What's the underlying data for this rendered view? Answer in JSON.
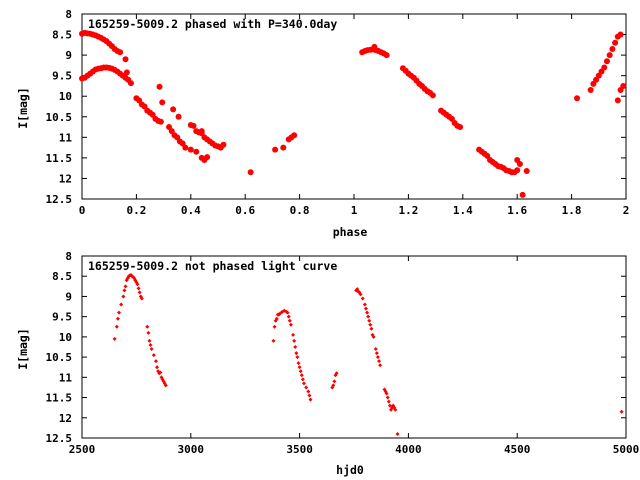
{
  "chart_data": [
    {
      "type": "scatter",
      "title": "165259-5009.2 phased with P=340.0day",
      "xlabel": "phase",
      "ylabel": "I[mag]",
      "xlim": [
        0,
        2
      ],
      "ylim": [
        12.5,
        8
      ],
      "y_inverted": true,
      "grid": false,
      "marker_color": "#ff0000",
      "marker": "filled-circle",
      "xticks": [
        0,
        0.2,
        0.4,
        0.6,
        0.8,
        1,
        1.2,
        1.4,
        1.6,
        1.8,
        2
      ],
      "xtick_labels": [
        "0",
        "0.2",
        "0.4",
        "0.6",
        "0.8",
        "1",
        "1.2",
        "1.4",
        "1.6",
        "1.8",
        "2"
      ],
      "yticks": [
        8,
        8.5,
        9,
        9.5,
        10,
        10.5,
        11,
        11.5,
        12,
        12.5
      ],
      "ytick_labels": [
        "8",
        "8.5",
        "9",
        "9.5",
        "10",
        "10.5",
        "11",
        "11.5",
        "12",
        "12.5"
      ],
      "points": [
        [
          0.0,
          8.48
        ],
        [
          0.01,
          8.46
        ],
        [
          0.02,
          8.47
        ],
        [
          0.03,
          8.48
        ],
        [
          0.04,
          8.5
        ],
        [
          0.05,
          8.52
        ],
        [
          0.06,
          8.55
        ],
        [
          0.07,
          8.58
        ],
        [
          0.08,
          8.62
        ],
        [
          0.09,
          8.66
        ],
        [
          0.1,
          8.72
        ],
        [
          0.11,
          8.78
        ],
        [
          0.12,
          8.85
        ],
        [
          0.13,
          8.9
        ],
        [
          0.14,
          8.93
        ],
        [
          0.0,
          9.57
        ],
        [
          0.01,
          9.55
        ],
        [
          0.02,
          9.5
        ],
        [
          0.03,
          9.45
        ],
        [
          0.04,
          9.4
        ],
        [
          0.05,
          9.35
        ],
        [
          0.06,
          9.33
        ],
        [
          0.07,
          9.32
        ],
        [
          0.08,
          9.3
        ],
        [
          0.09,
          9.3
        ],
        [
          0.1,
          9.31
        ],
        [
          0.11,
          9.33
        ],
        [
          0.12,
          9.36
        ],
        [
          0.13,
          9.4
        ],
        [
          0.14,
          9.45
        ],
        [
          0.15,
          9.5
        ],
        [
          0.16,
          9.55
        ],
        [
          0.17,
          9.6
        ],
        [
          0.18,
          9.68
        ],
        [
          0.16,
          9.1
        ],
        [
          0.165,
          9.42
        ],
        [
          0.2,
          10.05
        ],
        [
          0.21,
          10.1
        ],
        [
          0.22,
          10.2
        ],
        [
          0.23,
          10.25
        ],
        [
          0.24,
          10.35
        ],
        [
          0.25,
          10.4
        ],
        [
          0.26,
          10.45
        ],
        [
          0.27,
          10.55
        ],
        [
          0.28,
          10.6
        ],
        [
          0.29,
          10.62
        ],
        [
          0.285,
          9.77
        ],
        [
          0.295,
          10.15
        ],
        [
          0.32,
          10.75
        ],
        [
          0.33,
          10.85
        ],
        [
          0.34,
          10.95
        ],
        [
          0.35,
          11.0
        ],
        [
          0.36,
          11.1
        ],
        [
          0.37,
          11.15
        ],
        [
          0.38,
          11.25
        ],
        [
          0.335,
          10.32
        ],
        [
          0.355,
          10.5
        ],
        [
          0.4,
          10.7
        ],
        [
          0.41,
          10.72
        ],
        [
          0.42,
          10.85
        ],
        [
          0.43,
          10.88
        ],
        [
          0.44,
          10.9
        ],
        [
          0.45,
          11.0
        ],
        [
          0.46,
          11.05
        ],
        [
          0.47,
          11.1
        ],
        [
          0.48,
          11.15
        ],
        [
          0.49,
          11.2
        ],
        [
          0.5,
          11.22
        ],
        [
          0.51,
          11.25
        ],
        [
          0.52,
          11.18
        ],
        [
          0.4,
          11.3
        ],
        [
          0.42,
          11.35
        ],
        [
          0.44,
          11.5
        ],
        [
          0.45,
          11.55
        ],
        [
          0.46,
          11.48
        ],
        [
          0.44,
          10.85
        ],
        [
          0.62,
          11.85
        ],
        [
          0.71,
          11.3
        ],
        [
          0.74,
          11.25
        ],
        [
          0.76,
          11.05
        ],
        [
          0.77,
          11.0
        ],
        [
          0.78,
          10.95
        ],
        [
          1.03,
          8.93
        ],
        [
          1.04,
          8.9
        ],
        [
          1.05,
          8.88
        ],
        [
          1.06,
          8.87
        ],
        [
          1.07,
          8.86
        ],
        [
          1.08,
          8.88
        ],
        [
          1.09,
          8.9
        ],
        [
          1.1,
          8.93
        ],
        [
          1.11,
          8.96
        ],
        [
          1.12,
          9.0
        ],
        [
          1.075,
          8.8
        ],
        [
          1.18,
          9.32
        ],
        [
          1.19,
          9.38
        ],
        [
          1.2,
          9.45
        ],
        [
          1.21,
          9.5
        ],
        [
          1.22,
          9.55
        ],
        [
          1.23,
          9.62
        ],
        [
          1.24,
          9.7
        ],
        [
          1.25,
          9.75
        ],
        [
          1.26,
          9.82
        ],
        [
          1.27,
          9.88
        ],
        [
          1.28,
          9.92
        ],
        [
          1.29,
          9.98
        ],
        [
          1.32,
          10.35
        ],
        [
          1.33,
          10.4
        ],
        [
          1.34,
          10.45
        ],
        [
          1.35,
          10.5
        ],
        [
          1.36,
          10.55
        ],
        [
          1.37,
          10.65
        ],
        [
          1.38,
          10.72
        ],
        [
          1.39,
          10.75
        ],
        [
          1.46,
          11.3
        ],
        [
          1.47,
          11.35
        ],
        [
          1.48,
          11.4
        ],
        [
          1.49,
          11.45
        ],
        [
          1.5,
          11.55
        ],
        [
          1.51,
          11.6
        ],
        [
          1.52,
          11.65
        ],
        [
          1.53,
          11.7
        ],
        [
          1.54,
          11.72
        ],
        [
          1.55,
          11.75
        ],
        [
          1.56,
          11.8
        ],
        [
          1.57,
          11.82
        ],
        [
          1.58,
          11.85
        ],
        [
          1.59,
          11.85
        ],
        [
          1.6,
          11.8
        ],
        [
          1.6,
          11.55
        ],
        [
          1.61,
          11.65
        ],
        [
          1.62,
          12.4
        ],
        [
          1.635,
          11.82
        ],
        [
          1.82,
          10.05
        ],
        [
          1.87,
          9.85
        ],
        [
          1.88,
          9.7
        ],
        [
          1.89,
          9.6
        ],
        [
          1.9,
          9.5
        ],
        [
          1.91,
          9.4
        ],
        [
          1.92,
          9.3
        ],
        [
          1.93,
          9.15
        ],
        [
          1.94,
          9.0
        ],
        [
          1.95,
          8.85
        ],
        [
          1.96,
          8.7
        ],
        [
          1.97,
          8.55
        ],
        [
          1.98,
          8.5
        ],
        [
          1.97,
          10.1
        ],
        [
          1.98,
          9.85
        ],
        [
          1.99,
          9.75
        ]
      ]
    },
    {
      "type": "scatter",
      "title": "165259-5009.2 not phased light curve",
      "xlabel": "hjd0",
      "ylabel": "I[mag]",
      "xlim": [
        2500,
        5000
      ],
      "ylim": [
        12.5,
        8
      ],
      "y_inverted": true,
      "grid": false,
      "marker_color": "#ff0000",
      "marker": "small-diamond",
      "xticks": [
        2500,
        3000,
        3500,
        4000,
        4500,
        5000
      ],
      "xtick_labels": [
        "2500",
        "3000",
        "3500",
        "4000",
        "4500",
        "5000"
      ],
      "yticks": [
        8,
        8.5,
        9,
        9.5,
        10,
        10.5,
        11,
        11.5,
        12,
        12.5
      ],
      "ytick_labels": [
        "8",
        "8.5",
        "9",
        "9.5",
        "10",
        "10.5",
        "11",
        "11.5",
        "12",
        "12.5"
      ],
      "points": [
        [
          2650,
          10.05
        ],
        [
          2660,
          9.75
        ],
        [
          2665,
          9.55
        ],
        [
          2670,
          9.4
        ],
        [
          2680,
          9.2
        ],
        [
          2690,
          9.0
        ],
        [
          2695,
          8.85
        ],
        [
          2700,
          8.75
        ],
        [
          2705,
          8.6
        ],
        [
          2710,
          8.55
        ],
        [
          2715,
          8.5
        ],
        [
          2720,
          8.48
        ],
        [
          2725,
          8.47
        ],
        [
          2730,
          8.5
        ],
        [
          2735,
          8.52
        ],
        [
          2740,
          8.55
        ],
        [
          2745,
          8.6
        ],
        [
          2750,
          8.65
        ],
        [
          2755,
          8.7
        ],
        [
          2760,
          8.8
        ],
        [
          2765,
          8.9
        ],
        [
          2770,
          9.0
        ],
        [
          2775,
          9.05
        ],
        [
          2800,
          9.75
        ],
        [
          2805,
          9.9
        ],
        [
          2810,
          10.1
        ],
        [
          2815,
          10.2
        ],
        [
          2820,
          10.3
        ],
        [
          2830,
          10.45
        ],
        [
          2840,
          10.6
        ],
        [
          2845,
          10.75
        ],
        [
          2850,
          10.85
        ],
        [
          2855,
          10.9
        ],
        [
          2860,
          10.88
        ],
        [
          2865,
          11.0
        ],
        [
          2870,
          11.05
        ],
        [
          2875,
          11.1
        ],
        [
          2880,
          11.15
        ],
        [
          2885,
          11.2
        ],
        [
          3380,
          10.1
        ],
        [
          3385,
          9.75
        ],
        [
          3390,
          9.6
        ],
        [
          3395,
          9.55
        ],
        [
          3400,
          9.45
        ],
        [
          3405,
          9.45
        ],
        [
          3410,
          9.42
        ],
        [
          3420,
          9.38
        ],
        [
          3430,
          9.35
        ],
        [
          3440,
          9.38
        ],
        [
          3445,
          9.4
        ],
        [
          3450,
          9.5
        ],
        [
          3455,
          9.6
        ],
        [
          3460,
          9.7
        ],
        [
          3470,
          9.95
        ],
        [
          3475,
          10.1
        ],
        [
          3480,
          10.25
        ],
        [
          3485,
          10.4
        ],
        [
          3490,
          10.5
        ],
        [
          3495,
          10.65
        ],
        [
          3500,
          10.75
        ],
        [
          3505,
          10.85
        ],
        [
          3510,
          10.95
        ],
        [
          3515,
          11.05
        ],
        [
          3520,
          11.15
        ],
        [
          3530,
          11.25
        ],
        [
          3540,
          11.35
        ],
        [
          3545,
          11.45
        ],
        [
          3550,
          11.55
        ],
        [
          3650,
          11.25
        ],
        [
          3655,
          11.2
        ],
        [
          3660,
          11.1
        ],
        [
          3665,
          10.95
        ],
        [
          3670,
          10.9
        ],
        [
          3760,
          8.85
        ],
        [
          3765,
          8.82
        ],
        [
          3770,
          8.88
        ],
        [
          3775,
          8.9
        ],
        [
          3780,
          8.95
        ],
        [
          3790,
          9.05
        ],
        [
          3800,
          9.2
        ],
        [
          3805,
          9.3
        ],
        [
          3810,
          9.4
        ],
        [
          3815,
          9.5
        ],
        [
          3820,
          9.6
        ],
        [
          3825,
          9.7
        ],
        [
          3830,
          9.8
        ],
        [
          3835,
          9.95
        ],
        [
          3840,
          10.0
        ],
        [
          3850,
          10.3
        ],
        [
          3855,
          10.4
        ],
        [
          3860,
          10.5
        ],
        [
          3865,
          10.6
        ],
        [
          3870,
          10.7
        ],
        [
          3890,
          11.3
        ],
        [
          3895,
          11.35
        ],
        [
          3900,
          11.4
        ],
        [
          3905,
          11.5
        ],
        [
          3910,
          11.6
        ],
        [
          3915,
          11.7
        ],
        [
          3920,
          11.8
        ],
        [
          3925,
          11.75
        ],
        [
          3930,
          11.7
        ],
        [
          3935,
          11.75
        ],
        [
          3940,
          11.8
        ],
        [
          3950,
          12.4
        ],
        [
          4980,
          11.85
        ]
      ]
    }
  ]
}
